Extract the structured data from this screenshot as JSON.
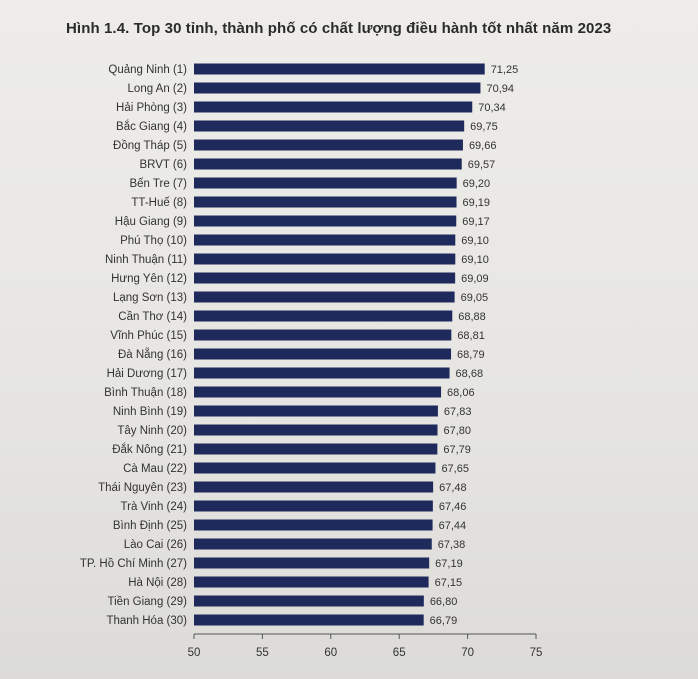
{
  "chart_data": {
    "type": "bar",
    "orientation": "horizontal",
    "title": "Hình 1.4. Top 30 tỉnh, thành phố có chất lượng điều hành tốt nhất năm 2023",
    "xlabel": "",
    "ylabel": "",
    "xlim": [
      50,
      75
    ],
    "xticks": [
      "50",
      "55",
      "60",
      "65",
      "70",
      "75"
    ],
    "grid": false,
    "bar_color": "#1f2a5c",
    "categories": [
      "Quảng Ninh (1)",
      "Long An (2)",
      "Hải Phòng (3)",
      "Bắc Giang (4)",
      "Đồng Tháp (5)",
      "BRVT (6)",
      "Bến Tre (7)",
      "TT-Huế (8)",
      "Hậu Giang (9)",
      "Phú Thọ (10)",
      "Ninh Thuận (11)",
      "Hưng Yên (12)",
      "Lạng Sơn (13)",
      "Cần Thơ (14)",
      "Vĩnh Phúc (15)",
      "Đà Nẵng (16)",
      "Hải Dương (17)",
      "Bình Thuận (18)",
      "Ninh Bình (19)",
      "Tây Ninh (20)",
      "Đắk Nông (21)",
      "Cà Mau (22)",
      "Thái Nguyên (23)",
      "Trà Vinh (24)",
      "Bình Định (25)",
      "Lào Cai (26)",
      "TP. Hồ Chí Minh (27)",
      "Hà Nội (28)",
      "Tiền Giang (29)",
      "Thanh Hóa (30)"
    ],
    "values": [
      71.25,
      70.94,
      70.34,
      69.75,
      69.66,
      69.57,
      69.2,
      69.19,
      69.17,
      69.1,
      69.1,
      69.09,
      69.05,
      68.88,
      68.81,
      68.79,
      68.68,
      68.06,
      67.83,
      67.8,
      67.79,
      67.65,
      67.48,
      67.46,
      67.44,
      67.38,
      67.19,
      67.15,
      66.8,
      66.79
    ],
    "value_labels": [
      "71,25",
      "70,94",
      "70,34",
      "69,75",
      "69,66",
      "69,57",
      "69,20",
      "69,19",
      "69,17",
      "69,10",
      "69,10",
      "69,09",
      "69,05",
      "68,88",
      "68,81",
      "68,79",
      "68,68",
      "68,06",
      "67,83",
      "67,80",
      "67,79",
      "67,65",
      "67,48",
      "67,46",
      "67,44",
      "67,38",
      "67,19",
      "67,15",
      "66,80",
      "66,79"
    ]
  }
}
